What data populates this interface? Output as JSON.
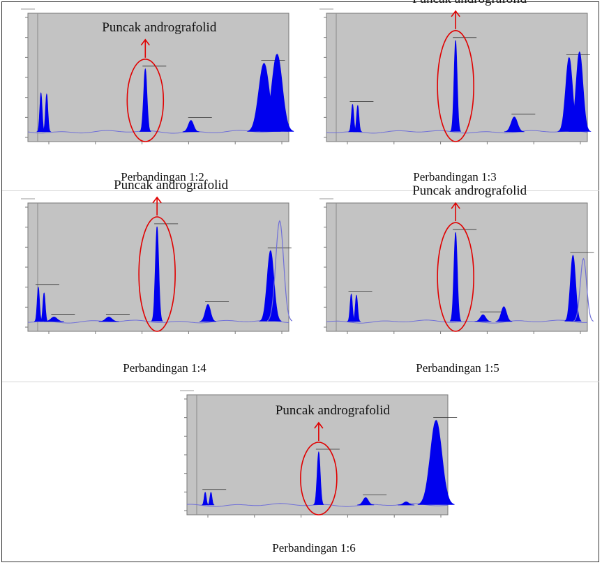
{
  "figure": {
    "annotation_color": "#e00000",
    "peak_fill": "#0000ee",
    "baseline_color": "#6f6fd8",
    "plot_bg": "#c3c3c3"
  },
  "chart_data": [
    {
      "type": "area",
      "title": "",
      "caption": "Perbandingan 1:2",
      "annotation": "Puncak andrografolid",
      "x_tick_labels": [
        "",
        "",
        "",
        "",
        "",
        ""
      ],
      "peaks": [
        {
          "x": 0.05,
          "h": 0.34,
          "w": 0.0045,
          "filled": true
        },
        {
          "x": 0.072,
          "h": 0.33,
          "w": 0.0045,
          "filled": true
        },
        {
          "x": 0.45,
          "h": 0.55,
          "w": 0.0065,
          "filled": true,
          "label": true,
          "highlight": true
        },
        {
          "x": 0.625,
          "h": 0.1,
          "w": 0.01,
          "filled": true,
          "label": true
        },
        {
          "x": 0.905,
          "h": 0.6,
          "w": 0.02,
          "filled": true,
          "label": true
        },
        {
          "x": 0.955,
          "h": 0.68,
          "w": 0.02,
          "filled": true
        }
      ]
    },
    {
      "type": "area",
      "title": "",
      "caption": "Perbandingan 1:3",
      "annotation": "Puncak andrografolid",
      "x_tick_labels": [
        "",
        "",
        "",
        "",
        "",
        ""
      ],
      "peaks": [
        {
          "x": 0.1,
          "h": 0.24,
          "w": 0.0045,
          "filled": true,
          "label": true
        },
        {
          "x": 0.12,
          "h": 0.23,
          "w": 0.0045,
          "filled": true
        },
        {
          "x": 0.495,
          "h": 0.8,
          "w": 0.006,
          "filled": true,
          "label": true,
          "highlight": true
        },
        {
          "x": 0.72,
          "h": 0.13,
          "w": 0.012,
          "filled": true,
          "label": true
        },
        {
          "x": 0.93,
          "h": 0.65,
          "w": 0.013,
          "filled": true,
          "label": true
        },
        {
          "x": 0.97,
          "h": 0.7,
          "w": 0.013,
          "filled": true
        }
      ]
    },
    {
      "type": "area",
      "title": "",
      "caption": "Perbandingan 1:4",
      "annotation": "Puncak andrografolid",
      "x_tick_labels": [
        "",
        "",
        "",
        "",
        "",
        ""
      ],
      "peaks": [
        {
          "x": 0.04,
          "h": 0.3,
          "w": 0.0045,
          "filled": true,
          "label": true
        },
        {
          "x": 0.062,
          "h": 0.25,
          "w": 0.0045,
          "filled": true
        },
        {
          "x": 0.1,
          "h": 0.04,
          "w": 0.012,
          "filled": true,
          "label": true
        },
        {
          "x": 0.31,
          "h": 0.04,
          "w": 0.012,
          "filled": true,
          "label": true
        },
        {
          "x": 0.495,
          "h": 0.83,
          "w": 0.0065,
          "filled": true,
          "label": true,
          "highlight": true
        },
        {
          "x": 0.69,
          "h": 0.15,
          "w": 0.01,
          "filled": true,
          "label": true
        },
        {
          "x": 0.93,
          "h": 0.62,
          "w": 0.013,
          "filled": true,
          "label": true
        },
        {
          "x": 0.965,
          "h": 0.88,
          "w": 0.015,
          "filled": false
        }
      ]
    },
    {
      "type": "area",
      "title": "",
      "caption": "Perbandingan 1:5",
      "annotation": "Puncak andrografolid",
      "x_tick_labels": [
        "",
        "",
        "",
        "",
        "",
        ""
      ],
      "peaks": [
        {
          "x": 0.095,
          "h": 0.24,
          "w": 0.0045,
          "filled": true,
          "label": true
        },
        {
          "x": 0.115,
          "h": 0.23,
          "w": 0.0045,
          "filled": true
        },
        {
          "x": 0.495,
          "h": 0.78,
          "w": 0.0065,
          "filled": true,
          "label": true,
          "highlight": true
        },
        {
          "x": 0.6,
          "h": 0.06,
          "w": 0.01,
          "filled": true,
          "label": true
        },
        {
          "x": 0.68,
          "h": 0.13,
          "w": 0.01,
          "filled": true
        },
        {
          "x": 0.945,
          "h": 0.58,
          "w": 0.01,
          "filled": true,
          "label": true
        },
        {
          "x": 0.985,
          "h": 0.55,
          "w": 0.012,
          "filled": false
        }
      ]
    },
    {
      "type": "area",
      "title": "",
      "caption": "Perbandingan 1:6",
      "annotation": "Puncak andrografolid",
      "x_tick_labels": [
        "",
        "",
        "",
        "",
        "",
        ""
      ],
      "peaks": [
        {
          "x": 0.07,
          "h": 0.12,
          "w": 0.004,
          "filled": true,
          "label": true
        },
        {
          "x": 0.092,
          "h": 0.12,
          "w": 0.004,
          "filled": true
        },
        {
          "x": 0.505,
          "h": 0.5,
          "w": 0.006,
          "filled": true,
          "label": true,
          "highlight": true
        },
        {
          "x": 0.685,
          "h": 0.07,
          "w": 0.01,
          "filled": true,
          "label": true
        },
        {
          "x": 0.84,
          "h": 0.03,
          "w": 0.01,
          "filled": true
        },
        {
          "x": 0.955,
          "h": 0.8,
          "w": 0.022,
          "filled": true,
          "label": true
        }
      ]
    }
  ]
}
